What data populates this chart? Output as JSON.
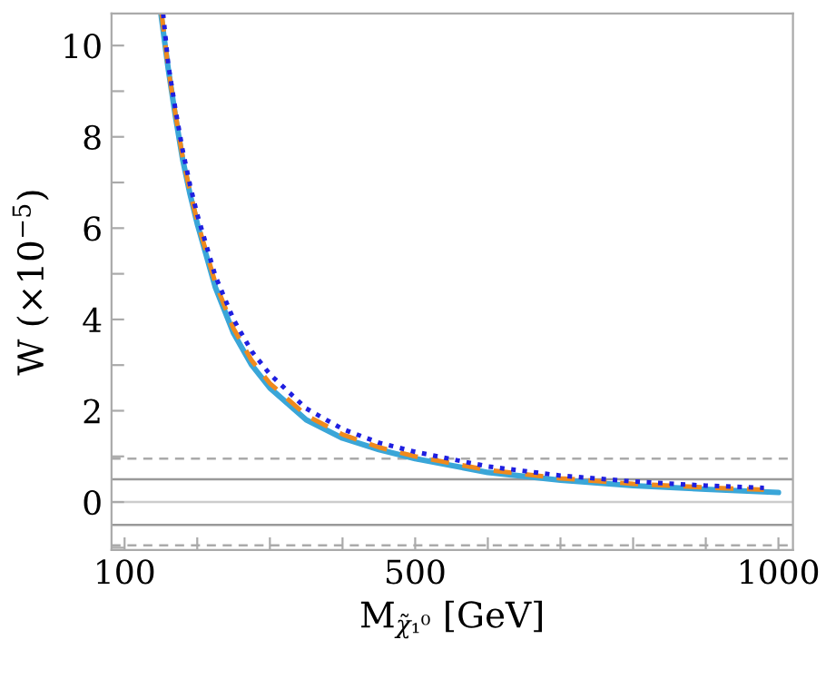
{
  "chart_data": {
    "type": "line",
    "xlabel": "M$_{χ̃₁⁰}$ [GeV]",
    "ylabel": "W (×10$^{−5}$)",
    "xlim": [
      82,
      1020
    ],
    "ylim": [
      -1.05,
      10.7
    ],
    "xticks": [
      100,
      {
        "value": 200,
        "label": null
      },
      {
        "value": 300,
        "label": null
      },
      {
        "value": 400,
        "label": null
      },
      500,
      {
        "value": 600,
        "label": null
      },
      {
        "value": 700,
        "label": null
      },
      {
        "value": 800,
        "label": null
      },
      {
        "value": 900,
        "label": null
      },
      1000
    ],
    "yticks": [
      {
        "value": -1,
        "label": null
      },
      0,
      {
        "value": 1,
        "label": null
      },
      2,
      {
        "value": 3,
        "label": null
      },
      4,
      {
        "value": 5,
        "label": null
      },
      6,
      {
        "value": 7,
        "label": null
      },
      8,
      {
        "value": 9,
        "label": null
      },
      10
    ],
    "grid": false,
    "legend": false,
    "ref_lines": [
      {
        "axis": "y",
        "value": 0.95,
        "color": "#aaaaaa",
        "line_style": "dashed"
      },
      {
        "axis": "y",
        "value": 0.5,
        "color": "#999999",
        "line_style": "solid"
      },
      {
        "axis": "y",
        "value": 0,
        "color": "#cccccc",
        "line_style": "solid"
      },
      {
        "axis": "y",
        "value": -0.5,
        "color": "#999999",
        "line_style": "solid"
      },
      {
        "axis": "y",
        "value": -0.95,
        "color": "#aaaaaa",
        "line_style": "dashed"
      }
    ],
    "series": [
      {
        "color": "#1f1fe0",
        "line_style": "dotted",
        "x": [
          153,
          160,
          170,
          180,
          190,
          200,
          225,
          250,
          275,
          300,
          350,
          400,
          450,
          500,
          600,
          700,
          800,
          900,
          980
        ],
        "values": [
          10.7,
          9.6,
          8.6,
          7.7,
          6.95,
          6.3,
          4.95,
          4.0,
          3.3,
          2.8,
          2.05,
          1.6,
          1.3,
          1.1,
          0.78,
          0.58,
          0.45,
          0.36,
          0.31
        ]
      },
      {
        "color": "#f08a1c",
        "line_style": "dashed",
        "x": [
          151,
          160,
          170,
          180,
          190,
          200,
          225,
          250,
          275,
          300,
          350,
          400,
          450,
          500,
          600,
          700,
          800,
          900,
          980
        ],
        "values": [
          10.7,
          9.5,
          8.5,
          7.55,
          6.8,
          6.15,
          4.8,
          3.8,
          3.1,
          2.6,
          1.9,
          1.48,
          1.2,
          1.0,
          0.7,
          0.52,
          0.4,
          0.32,
          0.27
        ]
      },
      {
        "color": "#3aa6d8",
        "line_style": "solid",
        "x": [
          150,
          160,
          170,
          180,
          190,
          200,
          225,
          250,
          275,
          300,
          350,
          400,
          450,
          500,
          600,
          700,
          800,
          900,
          1000
        ],
        "values": [
          10.7,
          9.5,
          8.45,
          7.5,
          6.75,
          6.1,
          4.7,
          3.7,
          3.0,
          2.5,
          1.8,
          1.4,
          1.15,
          0.95,
          0.65,
          0.48,
          0.36,
          0.28,
          0.21
        ]
      }
    ]
  }
}
